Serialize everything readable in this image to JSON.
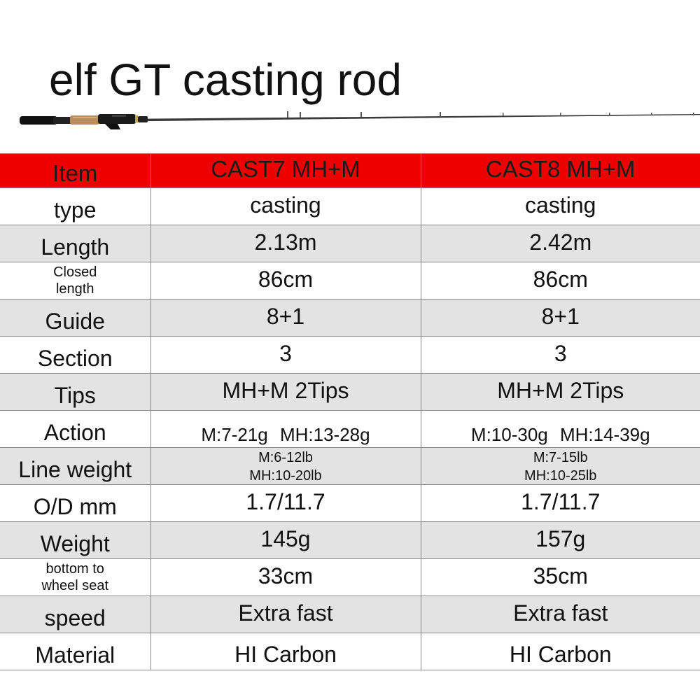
{
  "title": "elf GT casting rod",
  "product_image": "fishing-rod-illustration",
  "colors": {
    "header_bg": "#ee0000",
    "shaded_row_bg": "#e3e3e3",
    "text": "#111111",
    "grid": "#8a8a8a"
  },
  "table": {
    "headers": [
      "Item",
      "CAST7 MH+M",
      "CAST8 MH+M"
    ],
    "rows": [
      {
        "label": [
          "type"
        ],
        "cast7": [
          "casting"
        ],
        "cast8": [
          "casting"
        ]
      },
      {
        "label": [
          "Length"
        ],
        "cast7": [
          "2.13m"
        ],
        "cast8": [
          "2.42m"
        ]
      },
      {
        "label": [
          "Closed",
          "length"
        ],
        "cast7": [
          "86cm"
        ],
        "cast8": [
          "86cm"
        ]
      },
      {
        "label": [
          "Guide"
        ],
        "cast7": [
          "8+1"
        ],
        "cast8": [
          "8+1"
        ]
      },
      {
        "label": [
          "Section"
        ],
        "cast7": [
          "3"
        ],
        "cast8": [
          "3"
        ]
      },
      {
        "label": [
          "Tips"
        ],
        "cast7": [
          "MH+M  2Tips"
        ],
        "cast8": [
          "MH+M  2Tips"
        ]
      },
      {
        "label": [
          "Action"
        ],
        "cast7": [
          "M:7-21g   MH:13-28g"
        ],
        "cast8": [
          "M:10-30g   MH:14-39g"
        ]
      },
      {
        "label": [
          "Line weight"
        ],
        "cast7": [
          "M:6-12lb",
          "MH:10-20lb"
        ],
        "cast8": [
          "M:7-15lb",
          "MH:10-25lb"
        ]
      },
      {
        "label": [
          "O/D mm"
        ],
        "cast7": [
          "1.7/11.7"
        ],
        "cast8": [
          "1.7/11.7"
        ]
      },
      {
        "label": [
          "Weight"
        ],
        "cast7": [
          "145g"
        ],
        "cast8": [
          "157g"
        ]
      },
      {
        "label": [
          "bottom to",
          "wheel seat"
        ],
        "cast7": [
          "33cm"
        ],
        "cast8": [
          "35cm"
        ]
      },
      {
        "label": [
          "speed"
        ],
        "cast7": [
          "Extra fast"
        ],
        "cast8": [
          "Extra fast"
        ]
      },
      {
        "label": [
          "Material"
        ],
        "cast7": [
          "HI Carbon"
        ],
        "cast8": [
          "HI Carbon"
        ]
      }
    ]
  }
}
